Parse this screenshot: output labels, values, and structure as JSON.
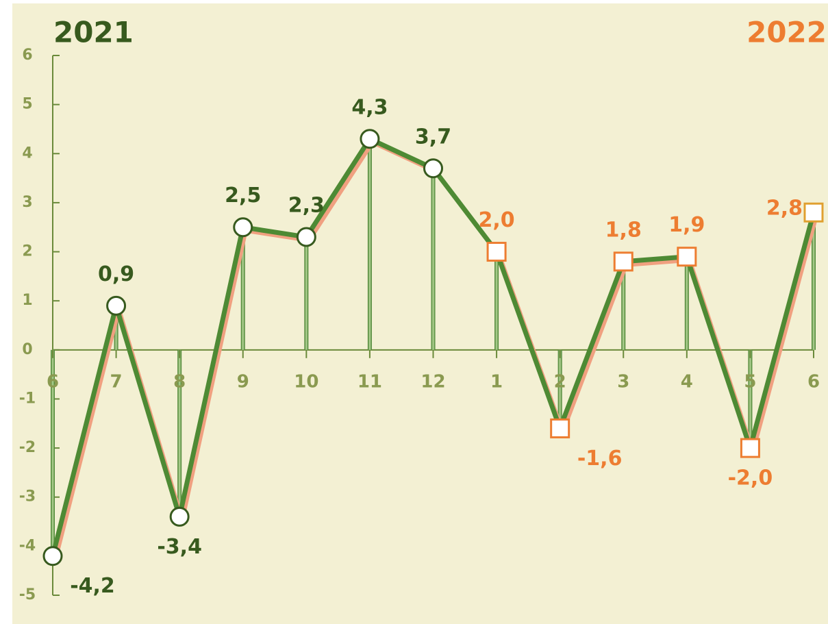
{
  "chart_data": {
    "type": "line",
    "annotations": [
      {
        "text": "2021",
        "color": "#375a1e"
      },
      {
        "text": "2022",
        "color": "#ed7d31"
      }
    ],
    "categories": [
      "6",
      "7",
      "8",
      "9",
      "10",
      "11",
      "12",
      "1",
      "2",
      "3",
      "4",
      "5",
      "6"
    ],
    "series": [
      {
        "color": "#4e8a34",
        "values": [
          -4.2,
          0.9,
          -3.4,
          2.5,
          2.3,
          4.3,
          3.7,
          2.0,
          -1.6,
          1.8,
          1.9,
          -2.0,
          2.8
        ],
        "value_labels": [
          "-4,2",
          "0,9",
          "-3,4",
          "2,5",
          "2,3",
          "4,3",
          "3,7",
          "2,0",
          "-1,6",
          "1,8",
          "1,9",
          "-2,0",
          "2,8"
        ],
        "marker_shapes": [
          "circle",
          "circle",
          "circle",
          "circle",
          "circle",
          "circle",
          "circle",
          "square",
          "square",
          "square",
          "square",
          "square",
          "square"
        ],
        "marker_colors": [
          "#375a1e",
          "#375a1e",
          "#375a1e",
          "#375a1e",
          "#375a1e",
          "#375a1e",
          "#375a1e",
          "#ed7d31",
          "#ed7d31",
          "#ed7d31",
          "#ed7d31",
          "#ed7d31",
          "#e0a030"
        ],
        "label_colors": [
          "#375a1e",
          "#375a1e",
          "#375a1e",
          "#375a1e",
          "#375a1e",
          "#375a1e",
          "#375a1e",
          "#ed7d31",
          "#ed7d31",
          "#ed7d31",
          "#ed7d31",
          "#ed7d31",
          "#ed7d31"
        ]
      }
    ],
    "ylim": [
      -5,
      6
    ],
    "yticks": [
      -5,
      -4,
      -3,
      -2,
      -1,
      0,
      1,
      2,
      3,
      4,
      5,
      6
    ]
  }
}
